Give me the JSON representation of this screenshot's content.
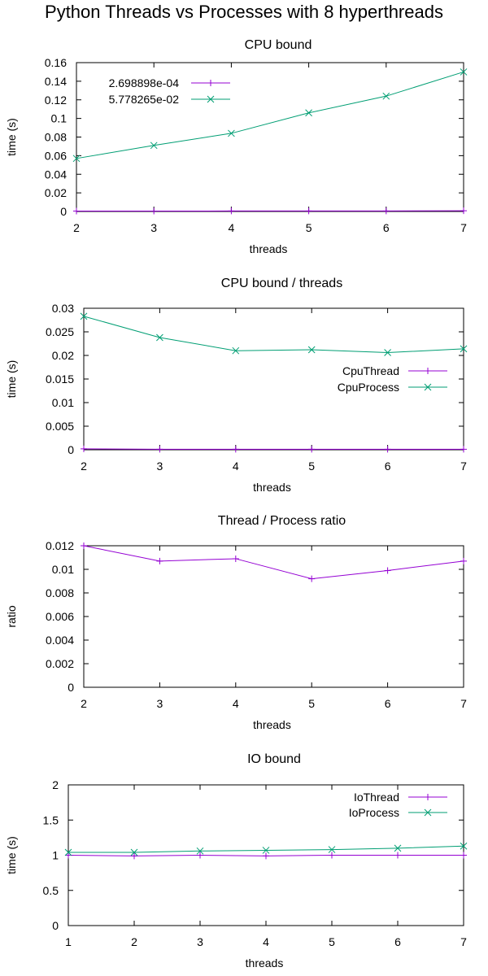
{
  "suptitle": "Python Threads vs Processes with 8 hyperthreads",
  "colors": {
    "purple": "#9400d3",
    "green": "#009e73"
  },
  "chart_data": [
    {
      "type": "line",
      "title": "CPU bound",
      "xlabel": "threads",
      "ylabel": "time (s)",
      "x": [
        2,
        3,
        4,
        5,
        6,
        7
      ],
      "xlim": [
        2,
        7
      ],
      "ylim": [
        0,
        0.16
      ],
      "yticks": [
        0,
        0.02,
        0.04,
        0.06,
        0.08,
        0.1,
        0.12,
        0.14,
        0.16
      ],
      "yticklabels": [
        "0",
        "0.02",
        "0.04",
        "0.06",
        "0.08",
        "0.1",
        "0.12",
        "0.14",
        "0.16"
      ],
      "xticks": [
        2,
        3,
        4,
        5,
        6,
        7
      ],
      "legend": "top-left",
      "series": [
        {
          "name": "2.698898e-04",
          "color": "#9400d3",
          "marker": "plus",
          "values": [
            0.0004,
            0.0004,
            0.0005,
            0.0005,
            0.0006,
            0.0008
          ]
        },
        {
          "name": "5.778265e-02",
          "color": "#009e73",
          "marker": "x",
          "values": [
            0.057,
            0.071,
            0.084,
            0.106,
            0.124,
            0.15
          ]
        }
      ]
    },
    {
      "type": "line",
      "title": "CPU bound / threads",
      "xlabel": "threads",
      "ylabel": "time (s)",
      "x": [
        2,
        3,
        4,
        5,
        6,
        7
      ],
      "xlim": [
        2,
        7
      ],
      "ylim": [
        0,
        0.03
      ],
      "yticks": [
        0,
        0.005,
        0.01,
        0.015,
        0.02,
        0.025,
        0.03
      ],
      "yticklabels": [
        "0",
        "0.005",
        "0.01",
        "0.015",
        "0.02",
        "0.025",
        "0.03"
      ],
      "xticks": [
        2,
        3,
        4,
        5,
        6,
        7
      ],
      "legend": "right",
      "series": [
        {
          "name": "CpuThread",
          "color": "#9400d3",
          "marker": "plus",
          "values": [
            0.0002,
            0.0001,
            0.0001,
            0.0001,
            0.0001,
            0.0001
          ]
        },
        {
          "name": "CpuProcess",
          "color": "#009e73",
          "marker": "x",
          "values": [
            0.0283,
            0.0238,
            0.021,
            0.0212,
            0.0206,
            0.0214
          ]
        }
      ]
    },
    {
      "type": "line",
      "title": "Thread / Process ratio",
      "xlabel": "threads",
      "ylabel": "ratio",
      "x": [
        2,
        3,
        4,
        5,
        6,
        7
      ],
      "xlim": [
        2,
        7
      ],
      "ylim": [
        0,
        0.012
      ],
      "yticks": [
        0,
        0.002,
        0.004,
        0.006,
        0.008,
        0.01,
        0.012
      ],
      "yticklabels": [
        "0",
        "0.002",
        "0.004",
        "0.006",
        "0.008",
        "0.01",
        "0.012"
      ],
      "xticks": [
        2,
        3,
        4,
        5,
        6,
        7
      ],
      "legend": "none",
      "series": [
        {
          "color": "#9400d3",
          "marker": "plus",
          "values": [
            0.012,
            0.0107,
            0.0109,
            0.0092,
            0.0099,
            0.0107
          ]
        }
      ]
    },
    {
      "type": "line",
      "title": "IO bound",
      "xlabel": "threads",
      "ylabel": "time (s)",
      "x": [
        1,
        2,
        3,
        4,
        5,
        6,
        7
      ],
      "xlim": [
        1,
        7
      ],
      "ylim": [
        0,
        2
      ],
      "yticks": [
        0,
        0.5,
        1,
        1.5,
        2
      ],
      "yticklabels": [
        "0",
        "0.5",
        "1",
        "1.5",
        "2"
      ],
      "xticks": [
        1,
        2,
        3,
        4,
        5,
        6,
        7
      ],
      "legend": "top-right",
      "series": [
        {
          "name": "IoThread",
          "color": "#9400d3",
          "marker": "plus",
          "values": [
            1.0,
            0.99,
            1.0,
            0.99,
            1.0,
            1.0,
            1.0
          ]
        },
        {
          "name": "IoProcess",
          "color": "#009e73",
          "marker": "x",
          "values": [
            1.04,
            1.04,
            1.06,
            1.07,
            1.08,
            1.1,
            1.13
          ]
        }
      ]
    }
  ]
}
